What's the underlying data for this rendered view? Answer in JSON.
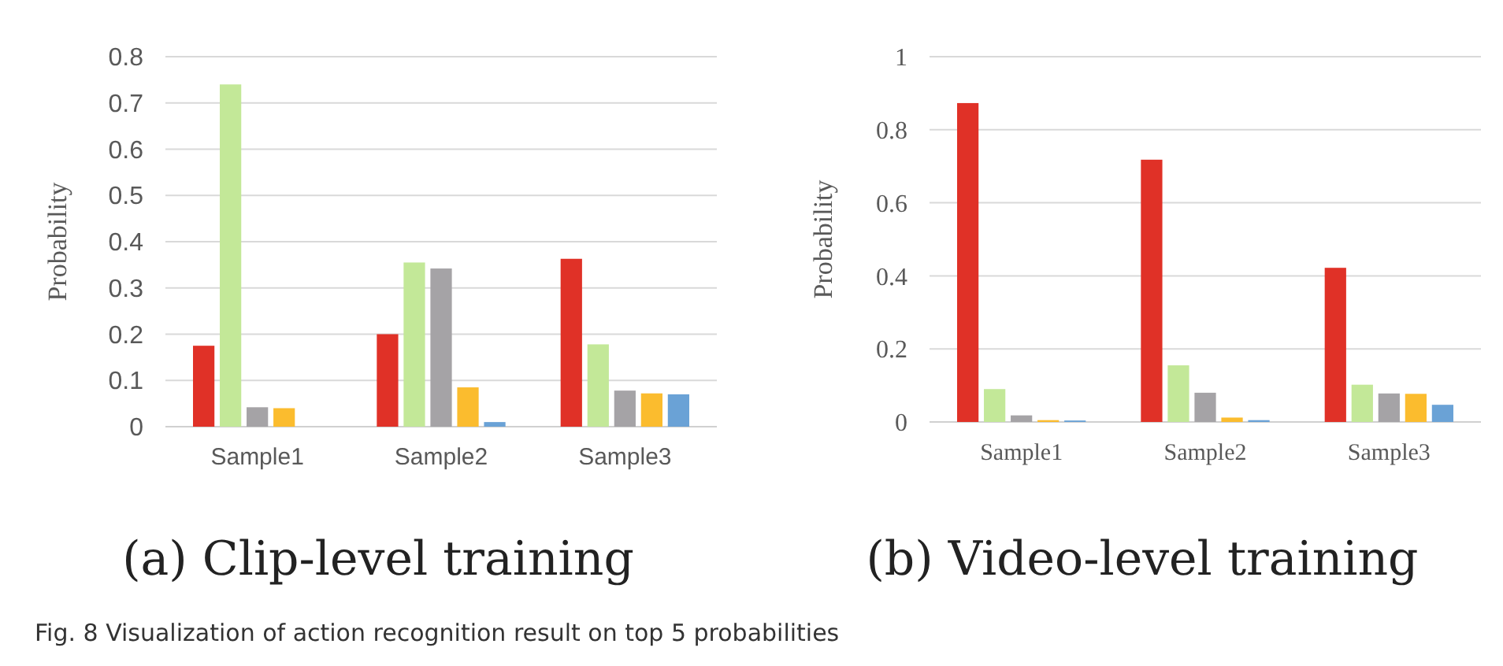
{
  "chart_data": [
    {
      "type": "bar",
      "title": "(a) Clip-level training",
      "ylabel": "Probability",
      "categories": [
        "Sample1",
        "Sample2",
        "Sample3"
      ],
      "ylim": [
        0,
        0.8
      ],
      "yticks": [
        0,
        0.1,
        0.2,
        0.3,
        0.4,
        0.5,
        0.6,
        0.7,
        0.8
      ],
      "grid": "y",
      "series": [
        {
          "color": "#e03127",
          "values": [
            0.175,
            0.2,
            0.363
          ]
        },
        {
          "color": "#c3e898",
          "values": [
            0.74,
            0.355,
            0.178
          ]
        },
        {
          "color": "#a5a3a6",
          "values": [
            0.042,
            0.342,
            0.078
          ]
        },
        {
          "color": "#fbbc2e",
          "values": [
            0.04,
            0.085,
            0.072
          ]
        },
        {
          "color": "#6aa2d6",
          "values": [
            null,
            0.01,
            0.07
          ]
        }
      ],
      "annotations": [
        "Fig. 8  Visualization of action recognition result on top 5 probabilities"
      ]
    },
    {
      "type": "bar",
      "title": "(b) Video-level training",
      "ylabel": "Probability",
      "categories": [
        "Sample1",
        "Sample2",
        "Sample3"
      ],
      "ylim": [
        0,
        1
      ],
      "yticks": [
        0,
        0.2,
        0.4,
        0.6,
        0.8,
        1
      ],
      "grid": "y",
      "series": [
        {
          "color": "#e03127",
          "values": [
            0.873,
            0.718,
            0.422
          ]
        },
        {
          "color": "#c3e898",
          "values": [
            0.09,
            0.155,
            0.102
          ]
        },
        {
          "color": "#a5a3a6",
          "values": [
            0.018,
            0.08,
            0.078
          ]
        },
        {
          "color": "#fbbc2e",
          "values": [
            0.005,
            0.012,
            0.077
          ]
        },
        {
          "color": "#6aa2d6",
          "values": [
            0.004,
            0.005,
            0.047
          ]
        }
      ]
    }
  ]
}
